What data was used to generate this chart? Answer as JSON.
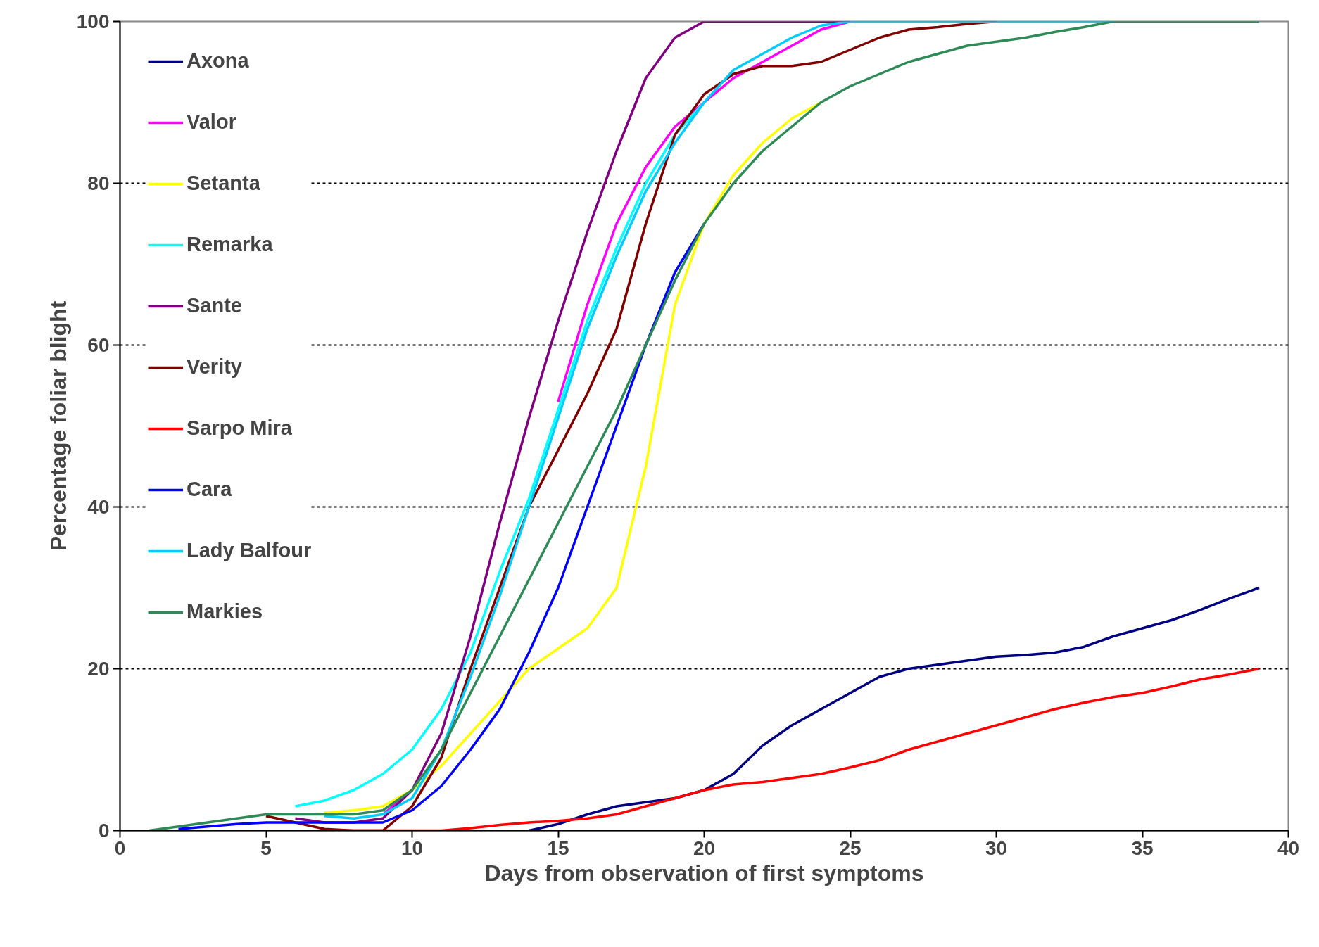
{
  "chart_data": {
    "type": "line",
    "xlabel": "Days from observation of first symptoms",
    "ylabel": "Percentage foliar blight",
    "x": [
      1,
      2,
      3,
      4,
      5,
      6,
      7,
      8,
      9,
      10,
      11,
      12,
      13,
      14,
      15,
      16,
      17,
      18,
      19,
      20,
      21,
      22,
      23,
      24,
      25,
      26,
      27,
      28,
      29,
      30,
      31,
      32,
      33,
      34,
      35,
      36,
      37,
      38,
      39
    ],
    "series": [
      {
        "name": "Axona",
        "color": "#000080",
        "values": [
          null,
          null,
          null,
          null,
          null,
          null,
          null,
          null,
          null,
          null,
          null,
          null,
          null,
          0,
          0.8,
          2,
          3,
          3.5,
          4,
          5,
          7,
          10.5,
          13,
          15,
          17,
          19,
          20,
          20.5,
          21,
          21.5,
          21.7,
          22,
          22.7,
          24,
          25,
          26,
          27.3,
          28.7,
          30
        ]
      },
      {
        "name": "Valor",
        "color": "#ff00ff",
        "values": [
          null,
          null,
          null,
          null,
          null,
          null,
          null,
          null,
          2,
          5,
          null,
          null,
          null,
          null,
          53,
          65,
          75,
          82,
          87,
          90,
          93,
          95,
          97,
          99,
          100,
          null,
          null,
          null,
          null,
          null,
          null,
          null,
          null,
          null,
          null,
          null,
          null,
          null,
          null
        ]
      },
      {
        "name": "Setanta",
        "color": "#ffff00",
        "values": [
          null,
          null,
          null,
          null,
          null,
          null,
          2.2,
          2.5,
          3,
          5,
          8,
          12,
          16,
          20,
          22.5,
          25,
          30,
          45,
          65,
          75,
          81,
          85,
          88,
          90,
          null,
          null,
          null,
          null,
          null,
          null,
          null,
          null,
          null,
          null,
          null,
          null,
          null,
          null,
          null
        ]
      },
      {
        "name": "Remarka",
        "color": "#00ffff",
        "values": [
          null,
          null,
          null,
          null,
          null,
          3,
          3.7,
          5,
          7,
          10,
          15,
          22,
          32,
          41,
          52,
          63,
          72,
          80,
          86,
          90,
          null,
          null,
          null,
          null,
          null,
          null,
          null,
          null,
          null,
          null,
          null,
          null,
          null,
          null,
          null,
          null,
          null,
          null,
          null
        ]
      },
      {
        "name": "Sante",
        "color": "#800080",
        "values": [
          null,
          null,
          null,
          null,
          null,
          1.5,
          1,
          1,
          1.5,
          5,
          12,
          24,
          38,
          51,
          63,
          74,
          84,
          93,
          98,
          100,
          100,
          100,
          100,
          100,
          100,
          null,
          null,
          null,
          null,
          null,
          null,
          null,
          null,
          null,
          null,
          null,
          null,
          null,
          null
        ]
      },
      {
        "name": "Verity",
        "color": "#800000",
        "values": [
          null,
          null,
          null,
          null,
          1.8,
          1,
          0.2,
          0,
          0,
          3,
          9,
          20,
          30,
          40,
          47,
          54,
          62,
          75,
          86,
          91,
          93.5,
          94.5,
          94.5,
          95,
          96.5,
          98,
          99,
          99.3,
          99.7,
          100,
          null,
          null,
          null,
          null,
          null,
          null,
          null,
          null,
          null
        ]
      },
      {
        "name": "Sarpo Mira",
        "color": "#ff0000",
        "values": [
          null,
          null,
          null,
          null,
          null,
          null,
          0,
          0,
          0,
          0,
          0,
          0.3,
          0.7,
          1,
          1.2,
          1.5,
          2,
          3,
          4,
          5,
          5.7,
          6,
          6.5,
          7,
          7.8,
          8.7,
          10,
          11,
          12,
          13,
          14,
          15,
          15.8,
          16.5,
          17,
          17.8,
          18.7,
          19.3,
          20
        ]
      },
      {
        "name": "Cara",
        "color": "#0000ff",
        "values": [
          null,
          0.2,
          0.5,
          0.8,
          1,
          1,
          1,
          1,
          1,
          2.5,
          5.5,
          10,
          15,
          22,
          30,
          40,
          50,
          60,
          69,
          75,
          null,
          null,
          null,
          null,
          null,
          null,
          null,
          null,
          null,
          null,
          null,
          null,
          null,
          null,
          null,
          null,
          null,
          null,
          null
        ]
      },
      {
        "name": "Lady Balfour",
        "color": "#00ccff",
        "values": [
          null,
          null,
          null,
          null,
          null,
          null,
          1.8,
          1.5,
          2,
          4,
          10,
          19,
          29,
          40,
          51,
          62,
          71,
          79,
          85,
          90,
          94,
          96,
          98,
          99.5,
          100,
          100,
          100,
          100,
          100,
          100,
          100,
          100,
          100,
          100,
          null,
          null,
          null,
          null,
          null
        ]
      },
      {
        "name": "Markies",
        "color": "#2e8b57",
        "values": [
          0,
          0.5,
          1,
          1.5,
          2,
          2,
          2,
          2,
          2.5,
          5,
          10,
          17,
          24,
          31,
          38,
          45,
          52,
          60,
          68,
          75,
          80,
          84,
          87,
          90,
          92,
          93.5,
          95,
          96,
          97,
          97.5,
          98,
          98.7,
          99.3,
          100,
          100,
          100,
          100,
          100,
          100
        ]
      }
    ],
    "xlim": [
      0,
      40
    ],
    "xticks": [
      0,
      5,
      10,
      15,
      20,
      25,
      30,
      35,
      40
    ],
    "ylim": [
      0,
      100
    ],
    "yticks": [
      0,
      20,
      40,
      60,
      80,
      100
    ],
    "grid": "y",
    "legend": "top left",
    "marker": "none",
    "line_style": "solid"
  }
}
